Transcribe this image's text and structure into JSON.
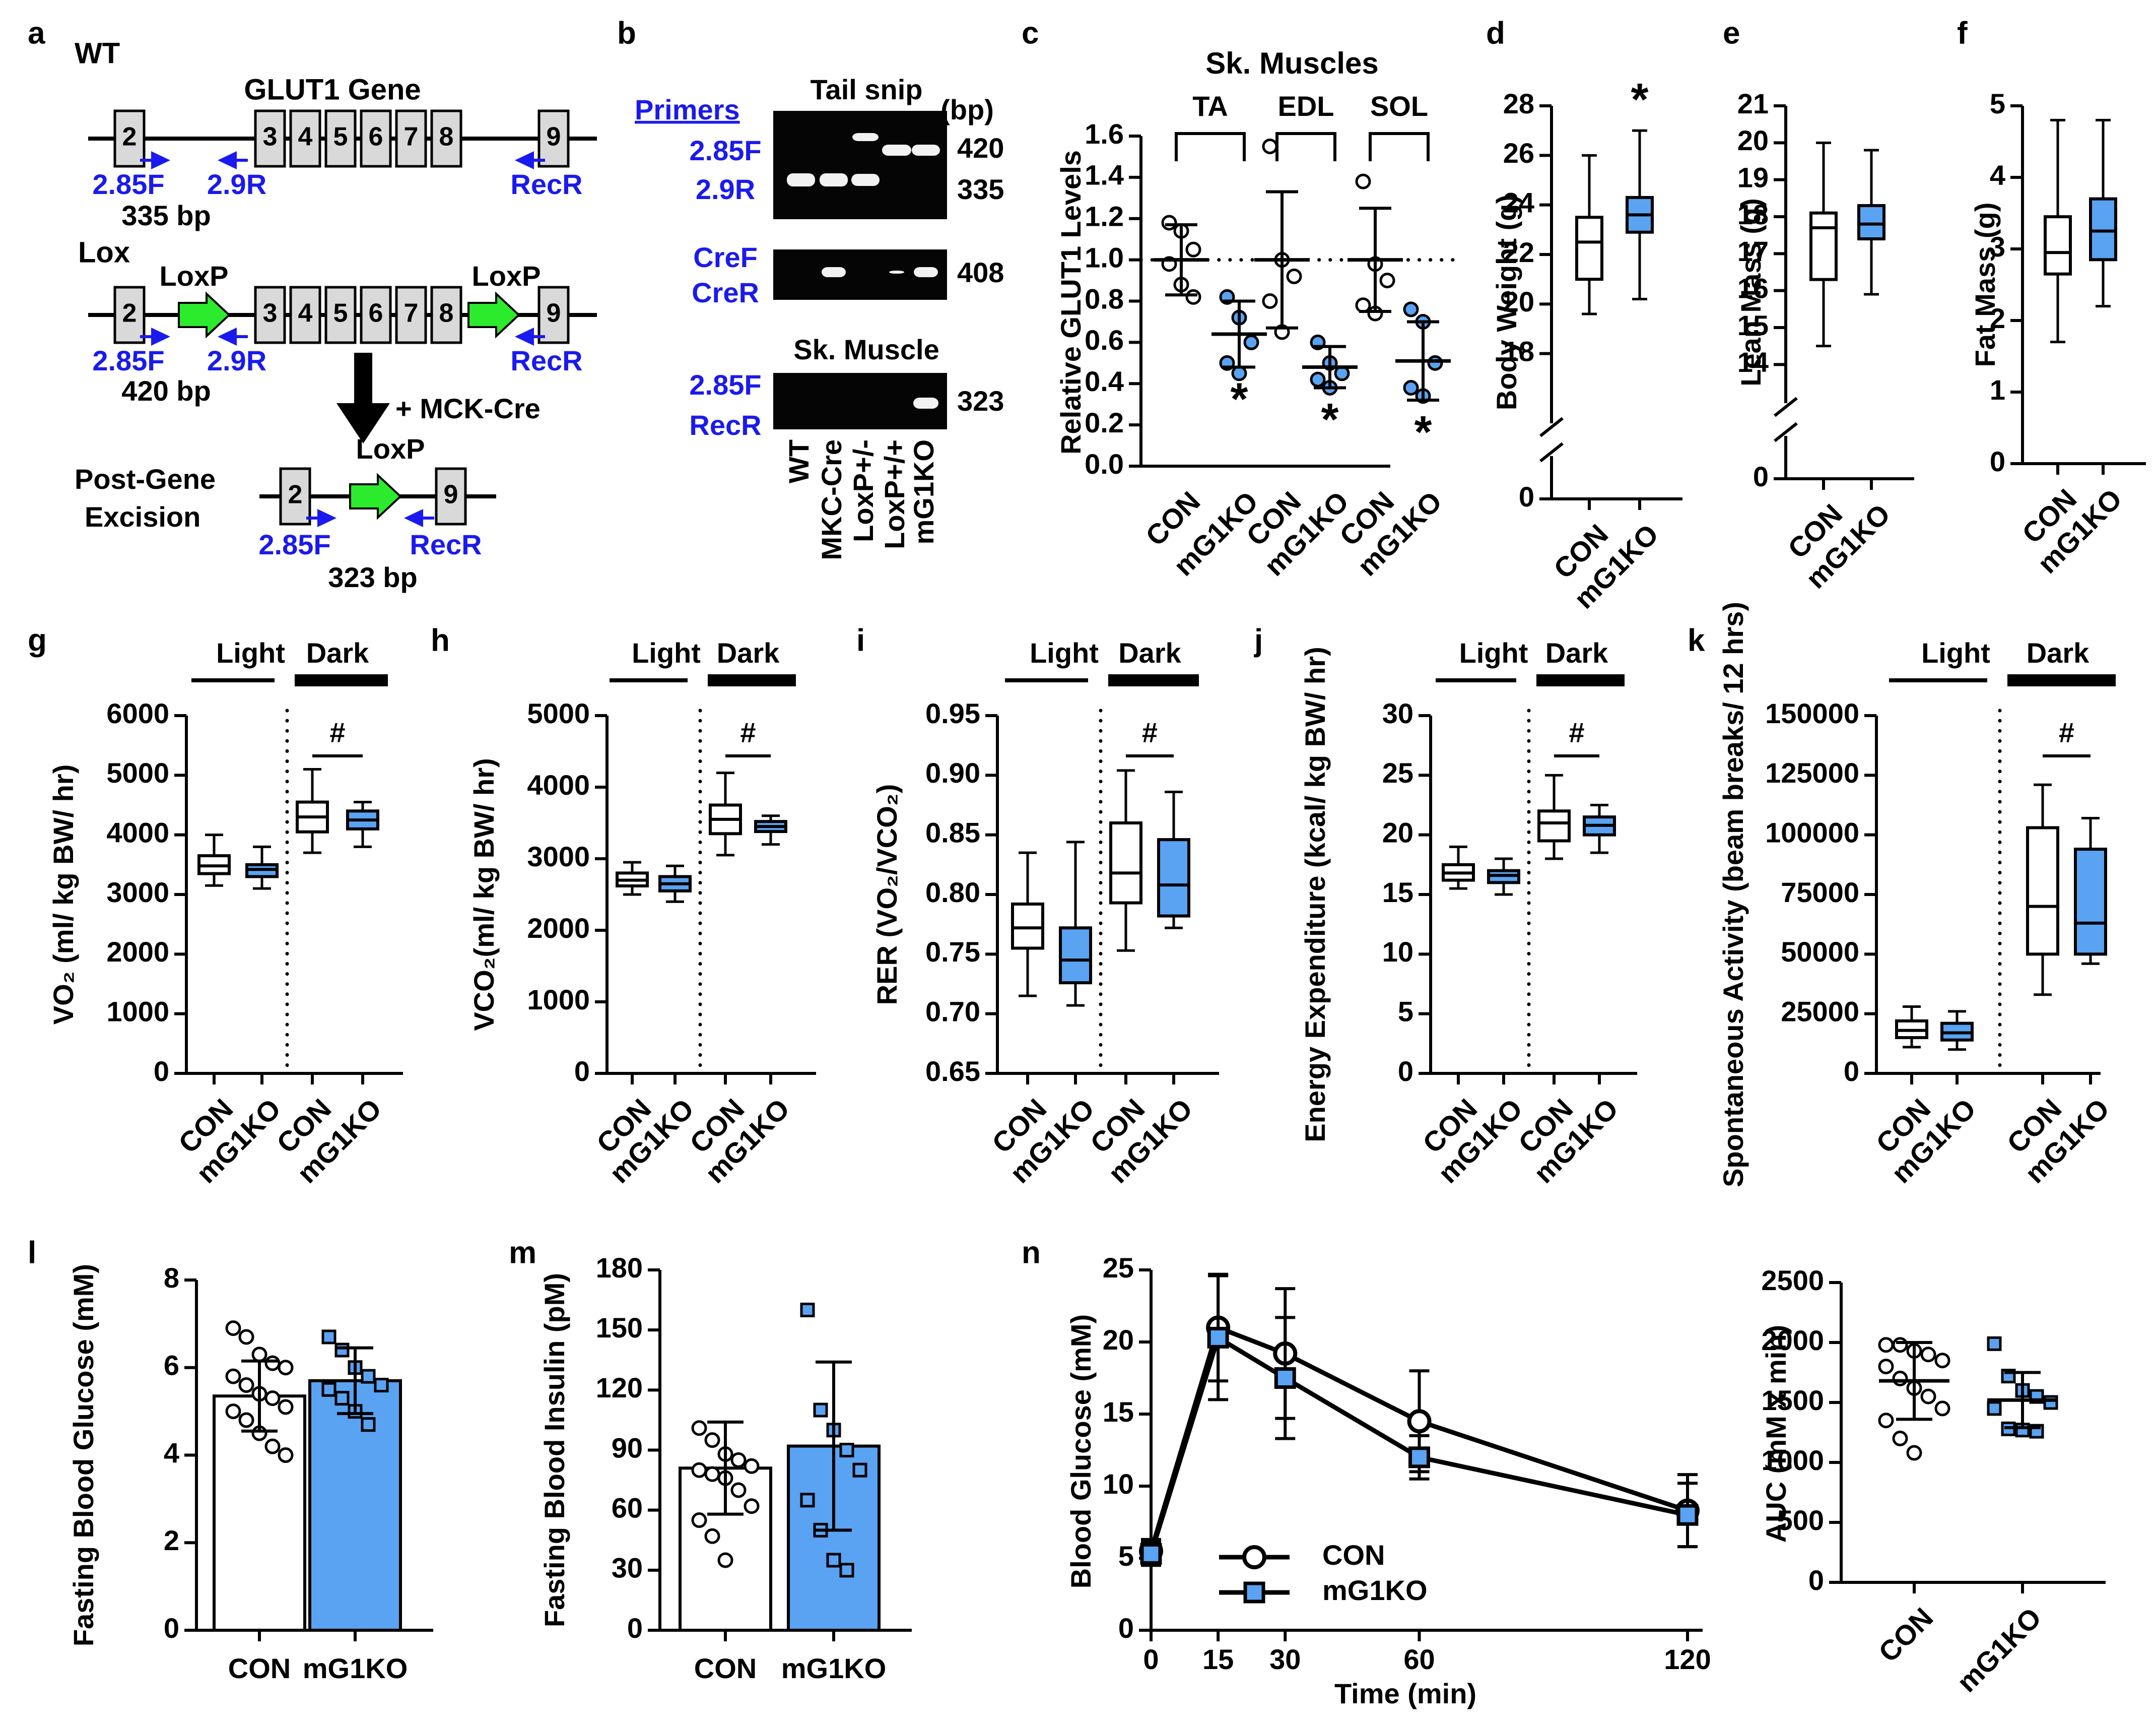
{
  "colors": {
    "blue": "#5aa2f2",
    "primer": "#1a1aee",
    "gel_bg": "#050505",
    "band": "#f2f2f2",
    "green": "#2cea2c",
    "box": "#d9d9d9"
  },
  "panel_letters": [
    "a",
    "b",
    "c",
    "d",
    "e",
    "f",
    "g",
    "h",
    "i",
    "j",
    "k",
    "l",
    "m",
    "n"
  ],
  "panel_a": {
    "wt": "WT",
    "gene_title": "GLUT1 Gene",
    "lox": "Lox",
    "exons_top": [
      "2",
      "3",
      "4",
      "5",
      "6",
      "7",
      "8",
      "9"
    ],
    "primers": [
      "2.85F",
      "2.9R",
      "RecR"
    ],
    "bp_wt": "335 bp",
    "bp_lox": "420 bp",
    "bp_post": "323 bp",
    "loxp": "LoxP",
    "arrow_label": "+ MCK-Cre",
    "post": "Post-Gene",
    "excision": "Excision",
    "exons_post": [
      "2",
      "9"
    ]
  },
  "panel_b": {
    "primers_header": "Primers",
    "tail_snip": "Tail snip",
    "bp_header": "(bp)",
    "gel1_primers": [
      "2.85F",
      "2.9R"
    ],
    "gel1_sizes": [
      "420",
      "335"
    ],
    "gel2_primers": [
      "CreF",
      "CreR"
    ],
    "gel2_sizes": [
      "408"
    ],
    "muscle_label": "Sk. Muscle",
    "gel3_primers": [
      "2.85F",
      "RecR"
    ],
    "gel3_sizes": [
      "323"
    ],
    "lanes": [
      "WT",
      "MKC-Cre",
      "LoxP+/-",
      "LoxP+/+",
      "mG1KO"
    ]
  },
  "chart_data": [
    {
      "id": "c",
      "type": "scatter",
      "title": "Sk. Muscles",
      "ylabel": "Relative GLUT1 Levels",
      "ylim": [
        0,
        1.6
      ],
      "yticks": [
        "0.0",
        "0.2",
        "0.4",
        "0.6",
        "0.8",
        "1.0",
        "1.2",
        "1.4",
        "1.6"
      ],
      "reference_line": 1.0,
      "groups": [
        "TA",
        "EDL",
        "SOL"
      ],
      "categories": [
        "CON",
        "mG1KO",
        "CON",
        "mG1KO",
        "CON",
        "mG1KO"
      ],
      "means": [
        1.0,
        0.64,
        1.0,
        0.48,
        1.0,
        0.51
      ],
      "sd": [
        0.17,
        0.16,
        0.33,
        0.1,
        0.25,
        0.19
      ],
      "points": [
        [
          1.18,
          1.14,
          1.05,
          0.98,
          0.88,
          0.82
        ],
        [
          0.82,
          0.72,
          0.6,
          0.5,
          0.45
        ],
        [
          1.55,
          1.0,
          0.92,
          0.8,
          0.65
        ],
        [
          0.6,
          0.5,
          0.45,
          0.42,
          0.38
        ],
        [
          1.38,
          0.98,
          0.9,
          0.78,
          0.74
        ],
        [
          0.76,
          0.7,
          0.5,
          0.38,
          0.34
        ]
      ],
      "significance": [
        "",
        "*",
        "",
        "*",
        "",
        "*"
      ]
    },
    {
      "id": "d",
      "type": "box",
      "ylabel": "Body Weight (g)",
      "ylim": [
        16,
        28
      ],
      "yticks": [
        "18",
        "20",
        "22",
        "24",
        "26",
        "28"
      ],
      "zero_label": "0",
      "categories": [
        "CON",
        "mG1KO"
      ],
      "boxes": [
        {
          "min": 19.6,
          "q1": 21.0,
          "median": 22.5,
          "q3": 23.5,
          "max": 26.0
        },
        {
          "min": 20.2,
          "q1": 22.9,
          "median": 23.6,
          "q3": 24.3,
          "max": 27.0
        }
      ],
      "significance": [
        "",
        "*"
      ]
    },
    {
      "id": "e",
      "type": "box",
      "ylabel": "Lean Mass (g)",
      "ylim": [
        13.5,
        21
      ],
      "yticks": [
        "14",
        "15",
        "16",
        "17",
        "18",
        "19",
        "20",
        "21"
      ],
      "zero_label": "0",
      "categories": [
        "CON",
        "mG1KO"
      ],
      "boxes": [
        {
          "min": 14.5,
          "q1": 16.3,
          "median": 17.7,
          "q3": 18.1,
          "max": 20.0
        },
        {
          "min": 15.9,
          "q1": 17.4,
          "median": 17.8,
          "q3": 18.3,
          "max": 19.8
        }
      ]
    },
    {
      "id": "f",
      "type": "box",
      "ylabel": "Fat  Mass (g)",
      "ylim": [
        0,
        5
      ],
      "yticks": [
        "0",
        "1",
        "2",
        "3",
        "4",
        "5"
      ],
      "categories": [
        "CON",
        "mG1KO"
      ],
      "boxes": [
        {
          "min": 1.7,
          "q1": 2.65,
          "median": 2.95,
          "q3": 3.45,
          "max": 4.8
        },
        {
          "min": 2.2,
          "q1": 2.85,
          "median": 3.25,
          "q3": 3.7,
          "max": 4.8
        }
      ]
    },
    {
      "id": "g",
      "type": "box",
      "ylabel": "VO₂ (ml/ kg BW/ hr)",
      "ylim": [
        0,
        6000
      ],
      "yticks": [
        "0",
        "1000",
        "2000",
        "3000",
        "4000",
        "5000",
        "6000"
      ],
      "categories": [
        "CON",
        "mG1KO",
        "CON",
        "mG1KO"
      ],
      "phases": [
        "Light",
        "Dark"
      ],
      "significance": "#",
      "boxes": [
        {
          "min": 3150,
          "q1": 3350,
          "median": 3480,
          "q3": 3650,
          "max": 4000
        },
        {
          "min": 3100,
          "q1": 3300,
          "median": 3420,
          "q3": 3500,
          "max": 3800
        },
        {
          "min": 3700,
          "q1": 4050,
          "median": 4300,
          "q3": 4550,
          "max": 5100
        },
        {
          "min": 3800,
          "q1": 4100,
          "median": 4250,
          "q3": 4400,
          "max": 4550
        }
      ]
    },
    {
      "id": "h",
      "type": "box",
      "ylabel": "VCO₂(ml/ kg BW/ hr)",
      "ylim": [
        0,
        5000
      ],
      "yticks": [
        "0",
        "1000",
        "2000",
        "3000",
        "4000",
        "5000"
      ],
      "categories": [
        "CON",
        "mG1KO",
        "CON",
        "mG1KO"
      ],
      "phases": [
        "Light",
        "Dark"
      ],
      "significance": "#",
      "boxes": [
        {
          "min": 2500,
          "q1": 2620,
          "median": 2700,
          "q3": 2800,
          "max": 2950
        },
        {
          "min": 2400,
          "q1": 2550,
          "median": 2650,
          "q3": 2750,
          "max": 2900
        },
        {
          "min": 3050,
          "q1": 3350,
          "median": 3550,
          "q3": 3750,
          "max": 4200
        },
        {
          "min": 3200,
          "q1": 3380,
          "median": 3450,
          "q3": 3520,
          "max": 3600
        }
      ]
    },
    {
      "id": "i",
      "type": "box",
      "ylabel": "RER (VO₂/VCO₂)",
      "ylim": [
        0.65,
        0.95
      ],
      "yticks": [
        "0.65",
        "0.70",
        "0.75",
        "0.80",
        "0.85",
        "0.90",
        "0.95"
      ],
      "categories": [
        "CON",
        "mG1KO",
        "CON",
        "mG1KO"
      ],
      "phases": [
        "Light",
        "Dark"
      ],
      "significance": "#",
      "boxes": [
        {
          "min": 0.715,
          "q1": 0.755,
          "median": 0.772,
          "q3": 0.792,
          "max": 0.835
        },
        {
          "min": 0.707,
          "q1": 0.726,
          "median": 0.745,
          "q3": 0.772,
          "max": 0.844
        },
        {
          "min": 0.753,
          "q1": 0.793,
          "median": 0.818,
          "q3": 0.86,
          "max": 0.904
        },
        {
          "min": 0.772,
          "q1": 0.782,
          "median": 0.808,
          "q3": 0.846,
          "max": 0.886
        }
      ]
    },
    {
      "id": "j",
      "type": "box",
      "ylabel": "Energy Expenditure (kcal/ kg BW/ hr)",
      "ylim": [
        0,
        30
      ],
      "yticks": [
        "0",
        "5",
        "10",
        "15",
        "20",
        "25",
        "30"
      ],
      "categories": [
        "CON",
        "mG1KO",
        "CON",
        "mG1KO"
      ],
      "phases": [
        "Light",
        "Dark"
      ],
      "significance": "#",
      "boxes": [
        {
          "min": 15.5,
          "q1": 16.2,
          "median": 16.8,
          "q3": 17.5,
          "max": 19.0
        },
        {
          "min": 15.0,
          "q1": 16.0,
          "median": 16.6,
          "q3": 17.0,
          "max": 18.0
        },
        {
          "min": 18.0,
          "q1": 19.5,
          "median": 21.0,
          "q3": 22.0,
          "max": 25.0
        },
        {
          "min": 18.5,
          "q1": 20.0,
          "median": 20.8,
          "q3": 21.5,
          "max": 22.5
        }
      ]
    },
    {
      "id": "k",
      "type": "box",
      "ylabel": "Spontaneous Activity (beam breaks/ 12 hrs)",
      "ylim": [
        0,
        150000
      ],
      "yticks": [
        "0",
        "25000",
        "50000",
        "75000",
        "100000",
        "125000",
        "150000"
      ],
      "categories": [
        "CON",
        "mG1KO",
        "CON",
        "mG1KO"
      ],
      "phases": [
        "Light",
        "Dark"
      ],
      "significance": "#",
      "boxes": [
        {
          "min": 11000,
          "q1": 15000,
          "median": 18000,
          "q3": 22000,
          "max": 28000
        },
        {
          "min": 10000,
          "q1": 14000,
          "median": 17000,
          "q3": 21000,
          "max": 26000
        },
        {
          "min": 33000,
          "q1": 50000,
          "median": 70000,
          "q3": 103000,
          "max": 121000
        },
        {
          "min": 46000,
          "q1": 50000,
          "median": 63000,
          "q3": 94000,
          "max": 107000
        }
      ]
    },
    {
      "id": "l",
      "type": "bar",
      "ylabel": "Fasting Blood Glucose (mM)",
      "ylim": [
        0,
        8
      ],
      "yticks": [
        "0",
        "2",
        "4",
        "6",
        "8"
      ],
      "categories": [
        "CON",
        "mG1KO"
      ],
      "values": [
        5.35,
        5.7
      ],
      "sd": [
        0.8,
        0.75
      ],
      "points": [
        [
          6.9,
          6.7,
          6.3,
          6.1,
          6.0,
          5.8,
          5.6,
          5.4,
          5.3,
          5.1,
          5.0,
          4.8,
          4.5,
          4.2,
          4.0
        ],
        [
          6.7,
          6.4,
          6.0,
          5.8,
          5.6,
          5.5,
          5.3,
          5.0,
          4.7
        ]
      ]
    },
    {
      "id": "m",
      "type": "bar",
      "ylabel": "Fasting Blood Insulin (pM)",
      "ylim": [
        0,
        180
      ],
      "yticks": [
        "0",
        "30",
        "60",
        "90",
        "120",
        "150",
        "180"
      ],
      "categories": [
        "CON",
        "mG1KO"
      ],
      "values": [
        81,
        92
      ],
      "sd": [
        23,
        42
      ],
      "points": [
        [
          101,
          95,
          88,
          85,
          82,
          80,
          78,
          76,
          70,
          62,
          55,
          47,
          35
        ],
        [
          160,
          110,
          100,
          90,
          80,
          65,
          50,
          35,
          30
        ]
      ]
    },
    {
      "id": "n",
      "type": "line",
      "xlabel": "Time (min)",
      "ylabel": "Blood Glucose (mM)",
      "x": [
        0,
        15,
        30,
        60,
        120
      ],
      "xticks": [
        "0",
        "15",
        "30",
        "60",
        "120"
      ],
      "ylim": [
        0,
        25
      ],
      "yticks": [
        "0",
        "5",
        "10",
        "15",
        "20",
        "25"
      ],
      "series": [
        {
          "name": "CON",
          "values": [
            5.5,
            21.0,
            19.2,
            14.5,
            8.3
          ],
          "sd": [
            0.8,
            3.7,
            4.5,
            3.5,
            2.5
          ]
        },
        {
          "name": "mG1KO",
          "values": [
            5.3,
            20.3,
            17.5,
            12.0,
            8.0
          ],
          "sd": [
            0.8,
            4.3,
            4.2,
            1.5,
            2.2
          ]
        }
      ]
    },
    {
      "id": "n_auc",
      "type": "scatter",
      "ylabel": "AUC (mM x min)",
      "ylim": [
        0,
        2500
      ],
      "yticks": [
        "0",
        "500",
        "1000",
        "1500",
        "2000",
        "2500"
      ],
      "categories": [
        "CON",
        "mG1KO"
      ],
      "means": [
        1680,
        1520
      ],
      "sd": [
        320,
        230
      ],
      "points": [
        [
          1980,
          1980,
          1930,
          1900,
          1850,
          1800,
          1700,
          1620,
          1550,
          1450,
          1350,
          1200,
          1080
        ],
        [
          1990,
          1720,
          1600,
          1550,
          1500,
          1450,
          1280,
          1270,
          1260
        ]
      ]
    }
  ]
}
